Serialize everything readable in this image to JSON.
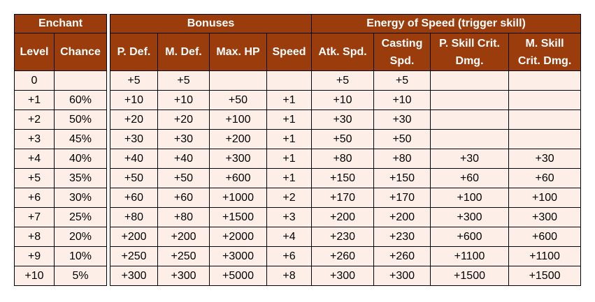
{
  "left": {
    "group": "Enchant",
    "headers": [
      "Level",
      "Chance"
    ],
    "rows": [
      [
        "0",
        ""
      ],
      [
        "+1",
        "60%"
      ],
      [
        "+2",
        "50%"
      ],
      [
        "+3",
        "45%"
      ],
      [
        "+4",
        "40%"
      ],
      [
        "+5",
        "35%"
      ],
      [
        "+6",
        "30%"
      ],
      [
        "+7",
        "25%"
      ],
      [
        "+8",
        "20%"
      ],
      [
        "+9",
        "10%"
      ],
      [
        "+10",
        "5%"
      ]
    ]
  },
  "right": {
    "groups": [
      "Bonuses",
      "Energy of Speed (trigger skill)"
    ],
    "headers": [
      "P. Def.",
      "M. Def.",
      "Max. HP",
      "Speed",
      "Atk. Spd.",
      "Casting Spd.",
      "P. Skill Crit. Dmg.",
      "M. Skill Crit. Dmg."
    ],
    "rows": [
      [
        "+5",
        "+5",
        "",
        "",
        "+5",
        "+5",
        "",
        ""
      ],
      [
        "+10",
        "+10",
        "+50",
        "+1",
        "+10",
        "+10",
        "",
        ""
      ],
      [
        "+20",
        "+20",
        "+100",
        "+1",
        "+30",
        "+30",
        "",
        ""
      ],
      [
        "+30",
        "+30",
        "+200",
        "+1",
        "+50",
        "+50",
        "",
        ""
      ],
      [
        "+40",
        "+40",
        "+300",
        "+1",
        "+80",
        "+80",
        "+30",
        "+30"
      ],
      [
        "+50",
        "+50",
        "+600",
        "+1",
        "+150",
        "+150",
        "+60",
        "+60"
      ],
      [
        "+60",
        "+60",
        "+1000",
        "+2",
        "+170",
        "+170",
        "+100",
        "+100"
      ],
      [
        "+80",
        "+80",
        "+1500",
        "+3",
        "+200",
        "+200",
        "+300",
        "+300"
      ],
      [
        "+200",
        "+200",
        "+2000",
        "+4",
        "+230",
        "+230",
        "+600",
        "+600"
      ],
      [
        "+250",
        "+250",
        "+3000",
        "+6",
        "+260",
        "+260",
        "+1100",
        "+1100"
      ],
      [
        "+300",
        "+300",
        "+5000",
        "+8",
        "+300",
        "+300",
        "+1500",
        "+1500"
      ]
    ]
  },
  "colors": {
    "header_bg": "#9a3c0c",
    "header_text": "#ffffff",
    "cell_bg": "#fdefe7",
    "border": "#000000"
  }
}
